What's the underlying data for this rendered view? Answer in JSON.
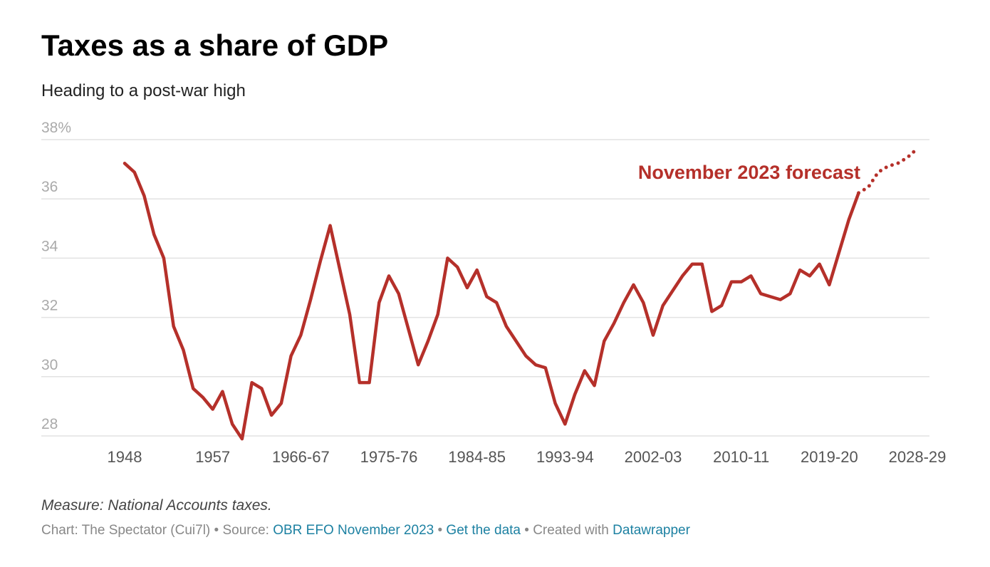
{
  "chart_data": {
    "type": "line",
    "title": "Taxes as a share of GDP",
    "subtitle": "Heading to a post-war high",
    "annotation": "November 2023 forecast",
    "categories": [
      "1948",
      null,
      null,
      null,
      null,
      null,
      null,
      null,
      null,
      "1957",
      null,
      null,
      null,
      null,
      null,
      null,
      null,
      null,
      "1966-67",
      null,
      null,
      null,
      null,
      null,
      null,
      null,
      null,
      "1975-76",
      null,
      null,
      null,
      null,
      null,
      null,
      null,
      null,
      "1984-85",
      null,
      null,
      null,
      null,
      null,
      null,
      null,
      null,
      "1993-94",
      null,
      null,
      null,
      null,
      null,
      null,
      null,
      null,
      "2002-03",
      null,
      null,
      null,
      null,
      null,
      null,
      null,
      null,
      "2010-11",
      null,
      null,
      null,
      null,
      null,
      null,
      null,
      null,
      "2019-20",
      null,
      null,
      null,
      null,
      null,
      null,
      null,
      null,
      "2028-29"
    ],
    "series": [
      {
        "color": "#b5302a",
        "style": "solid",
        "values": [
          37.2,
          36.9,
          36.1,
          34.8,
          34.0,
          31.7,
          30.9,
          29.6,
          29.3,
          28.9,
          29.5,
          28.4,
          27.9,
          29.8,
          29.6,
          28.7,
          29.1,
          30.7,
          31.4,
          32.6,
          33.9,
          35.1,
          33.6,
          32.1,
          29.8,
          29.8,
          32.5,
          33.4,
          32.8,
          31.6,
          30.4,
          31.2,
          32.1,
          34.0,
          33.7,
          33.0,
          33.6,
          32.7,
          32.5,
          31.7,
          31.2,
          30.7,
          30.4,
          30.3,
          29.1,
          28.4,
          29.4,
          30.2,
          29.7,
          31.2,
          31.8,
          32.5,
          33.1,
          32.5,
          31.4,
          32.4,
          32.9,
          33.4,
          33.8,
          33.8,
          32.2,
          32.4,
          33.2,
          33.2,
          33.4,
          32.8,
          32.7,
          32.6,
          32.8,
          33.6,
          33.4,
          33.8,
          33.1,
          34.2,
          35.3,
          36.2,
          null,
          null,
          null,
          null,
          null,
          null
        ]
      },
      {
        "name": "November 2023 forecast",
        "color": "#b5302a",
        "style": "dotted",
        "values": [
          null,
          null,
          null,
          null,
          null,
          null,
          null,
          null,
          null,
          null,
          null,
          null,
          null,
          null,
          null,
          null,
          null,
          null,
          null,
          null,
          null,
          null,
          null,
          null,
          null,
          null,
          null,
          null,
          null,
          null,
          null,
          null,
          null,
          null,
          null,
          null,
          null,
          null,
          null,
          null,
          null,
          null,
          null,
          null,
          null,
          null,
          null,
          null,
          null,
          null,
          null,
          null,
          null,
          null,
          null,
          null,
          null,
          null,
          null,
          null,
          null,
          null,
          null,
          null,
          null,
          null,
          null,
          null,
          null,
          null,
          null,
          null,
          null,
          null,
          null,
          36.2,
          36.4,
          36.9,
          37.1,
          37.2,
          37.4,
          37.7
        ]
      }
    ],
    "ylim": [
      28,
      38
    ],
    "yticks": [
      28,
      30,
      32,
      34,
      36,
      {
        "value": 38,
        "label": "38%"
      }
    ],
    "grid": true
  },
  "footer": {
    "note": "Measure: National Accounts taxes.",
    "credit": [
      "Chart: The Spectator (Cui7l) • Source: ",
      "OBR EFO November 2023",
      " • ",
      "Get the data",
      " • Created with ",
      "Datawrapper"
    ]
  }
}
